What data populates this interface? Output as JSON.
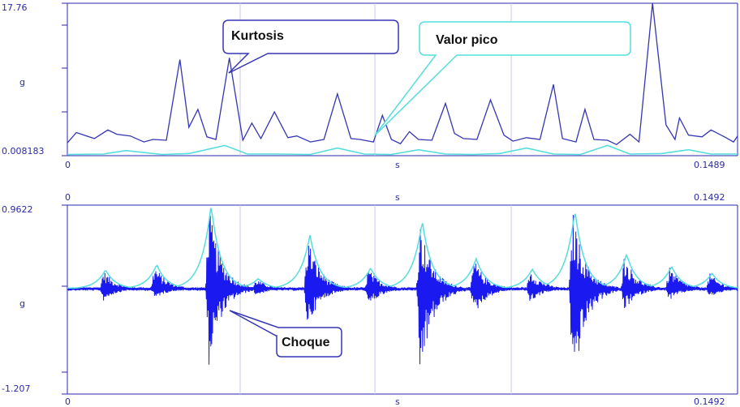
{
  "chart_data": [
    {
      "type": "line",
      "panel": "top",
      "ylabel": "g",
      "xlabel": "s",
      "x_ticks": [
        "0",
        "0.1489"
      ],
      "y_ticks": [
        "17.76",
        "0.008183"
      ],
      "xlim": [
        0,
        0.1489
      ],
      "ylim": [
        0.008183,
        17.76
      ],
      "grid": true,
      "colors": {
        "kurtosis": "#3535b5",
        "peak": "#55dddd",
        "axis": "#2a2aa8"
      },
      "series": [
        {
          "name": "Kurtosis",
          "x": [
            0.0,
            0.002,
            0.006,
            0.009,
            0.011,
            0.014,
            0.017,
            0.019,
            0.022,
            0.025,
            0.027,
            0.029,
            0.031,
            0.033,
            0.036,
            0.039,
            0.041,
            0.043,
            0.046,
            0.049,
            0.051,
            0.054,
            0.057,
            0.06,
            0.063,
            0.065,
            0.068,
            0.07,
            0.072,
            0.074,
            0.076,
            0.078,
            0.081,
            0.084,
            0.086,
            0.088,
            0.091,
            0.094,
            0.097,
            0.099,
            0.102,
            0.105,
            0.108,
            0.11,
            0.113,
            0.115,
            0.117,
            0.12,
            0.122,
            0.125,
            0.127,
            0.13,
            0.133,
            0.135,
            0.136,
            0.138,
            0.141,
            0.143,
            0.146,
            0.148,
            0.1489
          ],
          "values": [
            1.5,
            2.7,
            2.0,
            3.0,
            2.5,
            2.3,
            1.6,
            1.9,
            1.8,
            11.2,
            3.3,
            5.4,
            2.2,
            1.9,
            11.4,
            1.8,
            3.8,
            2.0,
            5.1,
            2.1,
            2.3,
            1.6,
            1.9,
            7.2,
            2.0,
            1.9,
            1.6,
            4.7,
            1.9,
            1.4,
            2.8,
            1.9,
            1.8,
            6.1,
            2.6,
            2.0,
            1.9,
            6.5,
            2.4,
            1.7,
            2.1,
            1.9,
            8.3,
            2.0,
            1.6,
            5.4,
            1.9,
            1.8,
            1.3,
            2.5,
            1.6,
            17.76,
            3.6,
            1.9,
            4.4,
            2.4,
            2.2,
            3.0,
            2.2,
            1.6,
            2.3
          ]
        },
        {
          "name": "Valor pico",
          "x": [
            0.0,
            0.008,
            0.013,
            0.021,
            0.027,
            0.035,
            0.04,
            0.047,
            0.054,
            0.06,
            0.066,
            0.072,
            0.078,
            0.084,
            0.09,
            0.096,
            0.102,
            0.108,
            0.114,
            0.12,
            0.125,
            0.132,
            0.138,
            0.143,
            0.1489
          ],
          "values": [
            0.15,
            0.2,
            0.6,
            0.15,
            0.25,
            1.2,
            0.2,
            0.2,
            0.15,
            0.9,
            0.2,
            0.15,
            0.7,
            0.2,
            0.15,
            0.25,
            0.9,
            0.2,
            0.15,
            1.2,
            0.2,
            0.25,
            0.7,
            0.2,
            0.2
          ]
        }
      ]
    },
    {
      "type": "line",
      "panel": "bottom",
      "ylabel": "g",
      "xlabel": "s",
      "x_ticks": [
        "0",
        "0.1492"
      ],
      "y_ticks": [
        "0.9622",
        "-1.207"
      ],
      "xlim": [
        0,
        0.1492
      ],
      "ylim": [
        -1.207,
        0.9622
      ],
      "grid": true,
      "colors": {
        "signal": "#1a1af0",
        "envelope": "#55dddd",
        "axis": "#2a2aa8"
      },
      "bursts": [
        {
          "t": 0.008,
          "pos": 0.22,
          "neg": -0.14
        },
        {
          "t": 0.0194,
          "pos": 0.28,
          "neg": -0.12
        },
        {
          "t": 0.0315,
          "pos": 0.96,
          "neg": -0.89
        },
        {
          "t": 0.042,
          "pos": 0.12,
          "neg": -0.08
        },
        {
          "t": 0.0535,
          "pos": 0.62,
          "neg": -0.45
        },
        {
          "t": 0.067,
          "pos": 0.24,
          "neg": -0.22
        },
        {
          "t": 0.0785,
          "pos": 0.78,
          "neg": -1.07
        },
        {
          "t": 0.0905,
          "pos": 0.35,
          "neg": -0.32
        },
        {
          "t": 0.103,
          "pos": 0.23,
          "neg": -0.16
        },
        {
          "t": 0.1125,
          "pos": 0.9,
          "neg": -1.2
        },
        {
          "t": 0.124,
          "pos": 0.4,
          "neg": -0.26
        },
        {
          "t": 0.134,
          "pos": 0.26,
          "neg": -0.14
        },
        {
          "t": 0.143,
          "pos": 0.18,
          "neg": -0.1
        }
      ]
    }
  ],
  "callouts": {
    "kurtosis": "Kurtosis",
    "peak": "Valor pico",
    "shock": "Choque"
  }
}
